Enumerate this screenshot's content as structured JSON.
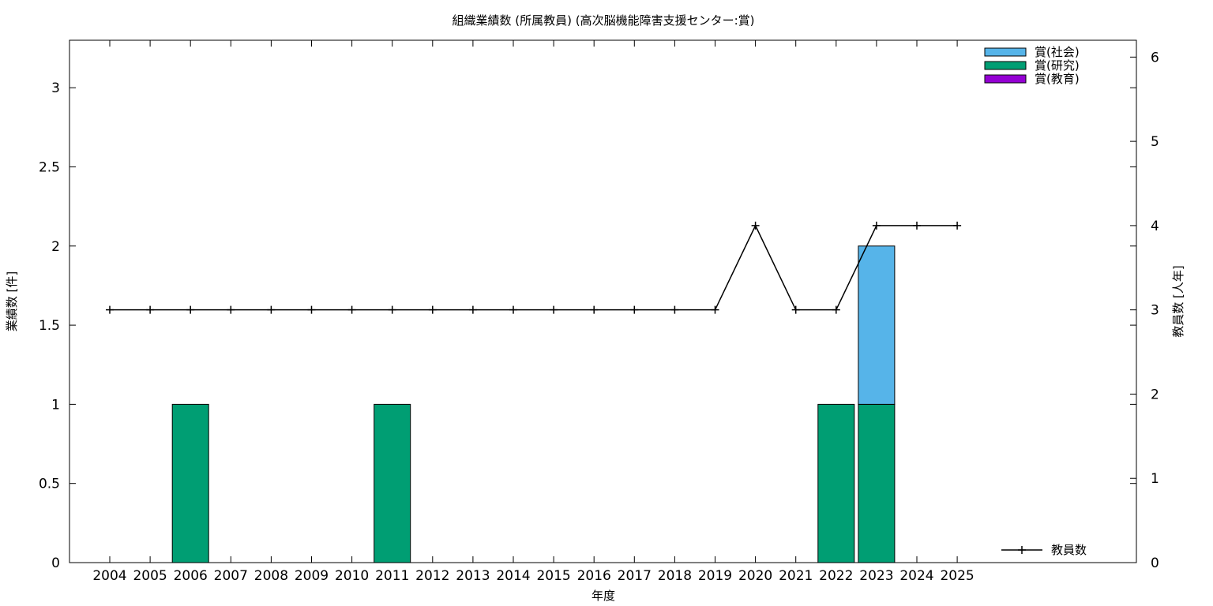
{
  "chart_data": {
    "type": "bar",
    "title": "組織業績数 (所属教員) (高次脳機能障害支援センター:賞)",
    "xlabel": "年度",
    "ylabel": "業績数 [件]",
    "y2label": "教員数 [人年]",
    "categories": [
      "2004",
      "2005",
      "2006",
      "2007",
      "2008",
      "2009",
      "2010",
      "2011",
      "2012",
      "2013",
      "2014",
      "2015",
      "2016",
      "2017",
      "2018",
      "2019",
      "2020",
      "2021",
      "2022",
      "2023",
      "2024",
      "2025"
    ],
    "ylim": [
      0,
      3.3
    ],
    "y2lim": [
      0,
      6.2
    ],
    "yticks": [
      0,
      0.5,
      1,
      1.5,
      2,
      2.5,
      3
    ],
    "y2ticks": [
      0,
      1,
      2,
      3,
      4,
      5,
      6
    ],
    "grid": false,
    "legend_position": "top-right",
    "colors": {
      "social": "#56b4e9",
      "research": "#009e73",
      "education": "#9400d3",
      "line": "#000000"
    },
    "stacked_series": [
      {
        "name": "賞(教育)",
        "key": "education",
        "values": [
          0,
          0,
          0,
          0,
          0,
          0,
          0,
          0,
          0,
          0,
          0,
          0,
          0,
          0,
          0,
          0,
          0,
          0,
          0,
          0,
          0,
          0
        ]
      },
      {
        "name": "賞(研究)",
        "key": "research",
        "values": [
          0,
          0,
          1,
          0,
          0,
          0,
          0,
          1,
          0,
          0,
          0,
          0,
          0,
          0,
          0,
          0,
          0,
          0,
          1,
          1,
          0,
          0
        ]
      },
      {
        "name": "賞(社会)",
        "key": "social",
        "values": [
          0,
          0,
          0,
          0,
          0,
          0,
          0,
          0,
          0,
          0,
          0,
          0,
          0,
          0,
          0,
          0,
          0,
          0,
          0,
          1,
          0,
          0
        ]
      }
    ],
    "legend_bars": [
      {
        "name": "賞(社会)",
        "key": "social"
      },
      {
        "name": "賞(研究)",
        "key": "research"
      },
      {
        "name": "賞(教育)",
        "key": "education"
      }
    ],
    "line_series": {
      "name": "教員数",
      "axis": "y2",
      "values": [
        3,
        3,
        3,
        3,
        3,
        3,
        3,
        3,
        3,
        3,
        3,
        3,
        3,
        3,
        3,
        3,
        4,
        3,
        3,
        4,
        4,
        4
      ]
    }
  }
}
